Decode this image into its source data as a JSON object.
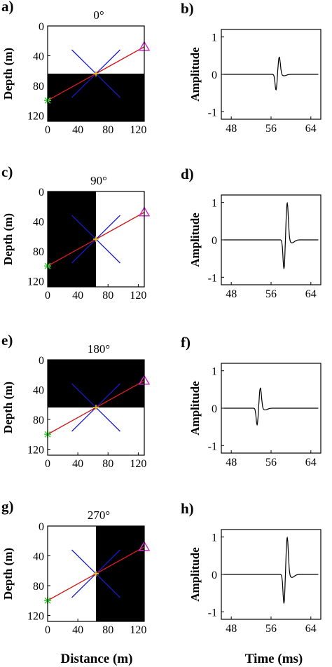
{
  "figure": {
    "x_axis_label_left": "Distance (m)",
    "x_axis_label_right": "Time (ms)"
  },
  "colors": {
    "anomaly": "#000000",
    "ray": "#d01c1c",
    "cross": "#1a1ac8",
    "source": "#3cd03c",
    "receiver": "#d030d0",
    "trace": "#000000"
  },
  "chart_data": [
    {
      "type": "scatter",
      "panel_label": "a)",
      "title": "0°",
      "ylabel": "Depth (m)",
      "xlabel": "",
      "xlim": [
        0,
        128
      ],
      "ylim": [
        128,
        0
      ],
      "xticks": [
        "0",
        "40",
        "80",
        "120"
      ],
      "yticks": [
        "0",
        "40",
        "80",
        "120"
      ],
      "anomaly_region": {
        "x": [
          0,
          128
        ],
        "depth": [
          64,
          128
        ]
      },
      "source": {
        "x": 0,
        "depth": 100
      },
      "receiver": {
        "x": 128,
        "depth": 28
      },
      "cross_center": {
        "x": 64,
        "depth": 64
      },
      "cross_arms": [
        [
          32,
          32,
          96,
          96
        ],
        [
          32,
          96,
          96,
          32
        ]
      ]
    },
    {
      "type": "line",
      "panel_label": "b)",
      "title": "",
      "ylabel": "Amplitude",
      "xlabel": "",
      "xlim": [
        46,
        66
      ],
      "ylim": [
        -1.2,
        1.2
      ],
      "xticks": [
        "48",
        "56",
        "64"
      ],
      "yticks": [
        "1",
        "0",
        "-1"
      ],
      "pulse": {
        "time": 57.3,
        "positive_peak": 0.47,
        "negative_peak": -0.42
      }
    },
    {
      "type": "scatter",
      "panel_label": "c)",
      "title": "90°",
      "ylabel": "Depth (m)",
      "xlabel": "",
      "xlim": [
        0,
        128
      ],
      "ylim": [
        128,
        0
      ],
      "xticks": [
        "0",
        "40",
        "80",
        "120"
      ],
      "yticks": [
        "0",
        "40",
        "80",
        "120"
      ],
      "anomaly_region": {
        "x": [
          0,
          64
        ],
        "depth": [
          0,
          128
        ]
      },
      "source": {
        "x": 0,
        "depth": 100
      },
      "receiver": {
        "x": 128,
        "depth": 28
      },
      "cross_center": {
        "x": 64,
        "depth": 64
      },
      "cross_arms": [
        [
          32,
          32,
          96,
          96
        ],
        [
          32,
          96,
          96,
          32
        ]
      ]
    },
    {
      "type": "line",
      "panel_label": "d)",
      "title": "",
      "ylabel": "Amplitude",
      "xlabel": "",
      "xlim": [
        46,
        66
      ],
      "ylim": [
        -1.2,
        1.2
      ],
      "xticks": [
        "48",
        "56",
        "64"
      ],
      "yticks": [
        "1",
        "0",
        "-1"
      ],
      "pulse": {
        "time": 58.9,
        "positive_peak": 1.0,
        "negative_peak": -0.78
      }
    },
    {
      "type": "scatter",
      "panel_label": "e)",
      "title": "180°",
      "ylabel": "Depth (m)",
      "xlabel": "",
      "xlim": [
        0,
        128
      ],
      "ylim": [
        128,
        0
      ],
      "xticks": [
        "0",
        "40",
        "80",
        "120"
      ],
      "yticks": [
        "0",
        "40",
        "80",
        "120"
      ],
      "anomaly_region": {
        "x": [
          0,
          128
        ],
        "depth": [
          0,
          64
        ]
      },
      "source": {
        "x": 0,
        "depth": 100
      },
      "receiver": {
        "x": 128,
        "depth": 28
      },
      "cross_center": {
        "x": 64,
        "depth": 64
      },
      "cross_arms": [
        [
          32,
          32,
          96,
          96
        ],
        [
          32,
          96,
          96,
          32
        ]
      ]
    },
    {
      "type": "line",
      "panel_label": "f)",
      "title": "",
      "ylabel": "Amplitude",
      "xlabel": "",
      "xlim": [
        46,
        66
      ],
      "ylim": [
        -1.2,
        1.2
      ],
      "xticks": [
        "48",
        "56",
        "64"
      ],
      "yticks": [
        "1",
        "0",
        "-1"
      ],
      "pulse": {
        "time": 53.5,
        "positive_peak": 0.55,
        "negative_peak": -0.45
      }
    },
    {
      "type": "scatter",
      "panel_label": "g)",
      "title": "270°",
      "ylabel": "Depth (m)",
      "xlabel": "",
      "xlim": [
        0,
        128
      ],
      "ylim": [
        128,
        0
      ],
      "xticks": [
        "0",
        "40",
        "80",
        "120"
      ],
      "yticks": [
        "0",
        "40",
        "80",
        "120"
      ],
      "anomaly_region": {
        "x": [
          64,
          128
        ],
        "depth": [
          0,
          128
        ]
      },
      "source": {
        "x": 0,
        "depth": 100
      },
      "receiver": {
        "x": 128,
        "depth": 28
      },
      "cross_center": {
        "x": 64,
        "depth": 64
      },
      "cross_arms": [
        [
          32,
          32,
          96,
          96
        ],
        [
          32,
          96,
          96,
          32
        ]
      ]
    },
    {
      "type": "line",
      "panel_label": "h)",
      "title": "",
      "ylabel": "Amplitude",
      "xlabel": "",
      "xlim": [
        46,
        66
      ],
      "ylim": [
        -1.2,
        1.2
      ],
      "xticks": [
        "48",
        "56",
        "64"
      ],
      "yticks": [
        "1",
        "0",
        "-1"
      ],
      "pulse": {
        "time": 58.9,
        "positive_peak": 1.0,
        "negative_peak": -0.78
      }
    }
  ]
}
